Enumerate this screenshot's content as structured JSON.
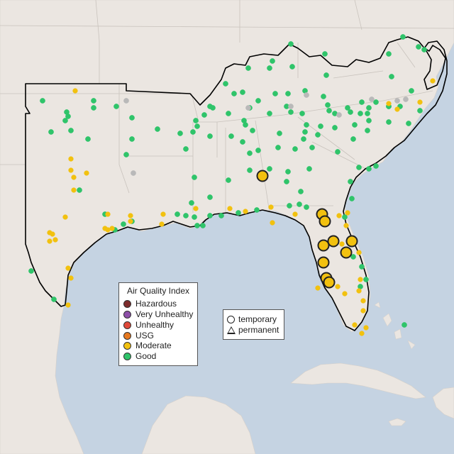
{
  "legend": {
    "title": "Air Quality Index",
    "items": [
      {
        "label": "Hazardous",
        "color": "#7e2c2c"
      },
      {
        "label": "Very Unhealthy",
        "color": "#8d4fa8"
      },
      {
        "label": "Unhealthy",
        "color": "#e0493a"
      },
      {
        "label": "USG",
        "color": "#e6781f"
      },
      {
        "label": "Moderate",
        "color": "#f2c10f"
      },
      {
        "label": "Good",
        "color": "#2fc46a"
      }
    ]
  },
  "monitor_types": {
    "items": [
      {
        "label": "temporary",
        "shape": "circle"
      },
      {
        "label": "permanent",
        "shape": "triangle"
      }
    ]
  },
  "colors": {
    "water": "#c5d3e2",
    "land": "#ebe6e1",
    "region_outline": "#000000",
    "no_data": "#b9b9b9"
  }
}
